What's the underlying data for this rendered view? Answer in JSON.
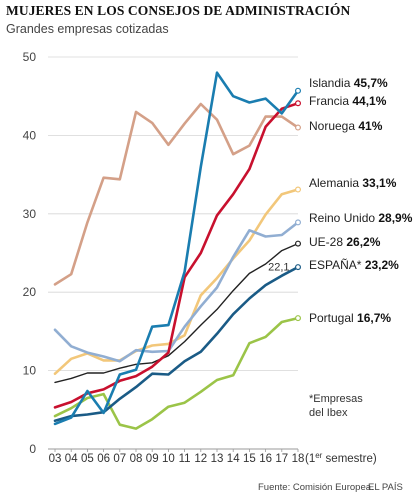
{
  "chart_data": {
    "type": "line",
    "title": "MUJERES EN LOS CONSEJOS DE ADMINISTRACIÓN",
    "subtitle": "Grandes empresas cotizadas",
    "x": [
      "03",
      "04",
      "05",
      "06",
      "07",
      "08",
      "09",
      "10",
      "11",
      "12",
      "13",
      "14",
      "15",
      "16",
      "17",
      "18"
    ],
    "x_suffix": " (1",
    "x_suffix_sup": "er",
    "x_suffix_end": " semestre)",
    "ylim": [
      0,
      50
    ],
    "yticks": [
      0,
      10,
      20,
      30,
      40,
      50
    ],
    "grid": "horizontal",
    "series": [
      {
        "name": "Islandia",
        "label_value": "45,7%",
        "color": "#1a7db0",
        "values": [
          3.2,
          4.0,
          7.4,
          4.6,
          9.5,
          10.1,
          15.6,
          15.8,
          22.6,
          36.0,
          48.0,
          45.0,
          44.2,
          44.7,
          42.8,
          45.7
        ]
      },
      {
        "name": "Francia",
        "label_value": "44,1%",
        "color": "#c8102e",
        "values": [
          5.3,
          6.0,
          7.1,
          7.6,
          8.7,
          9.3,
          10.5,
          12.3,
          21.9,
          25.0,
          29.8,
          32.5,
          35.7,
          41.1,
          43.4,
          44.1
        ]
      },
      {
        "name": "Noruega",
        "label_value": "41%",
        "color": "#d4a088",
        "values": [
          21.0,
          22.3,
          28.9,
          34.6,
          34.4,
          43.0,
          41.6,
          38.8,
          41.5,
          44.0,
          42.0,
          37.6,
          38.7,
          42.4,
          42.4,
          41.0
        ]
      },
      {
        "name": "Alemania",
        "label_value": "33,1%",
        "color": "#f2c77a",
        "values": [
          9.6,
          11.5,
          12.2,
          11.3,
          11.3,
          12.5,
          13.2,
          13.4,
          14.5,
          19.6,
          21.8,
          24.3,
          26.6,
          29.9,
          32.5,
          33.1
        ]
      },
      {
        "name": "Reino Unido",
        "label_value": "28,9%",
        "color": "#91aed2",
        "values": [
          15.2,
          13.1,
          12.3,
          11.8,
          11.2,
          12.6,
          12.4,
          12.5,
          15.6,
          18.2,
          20.6,
          24.5,
          27.9,
          27.1,
          27.3,
          28.9
        ]
      },
      {
        "name": "UE-28",
        "label_value": "26,2%",
        "color": "#222222",
        "values": [
          8.5,
          9.0,
          9.7,
          9.7,
          10.3,
          10.8,
          11.0,
          11.9,
          13.7,
          15.8,
          17.8,
          20.2,
          22.4,
          23.6,
          25.3,
          26.2
        ]
      },
      {
        "name": "ESPAÑA*",
        "label_value": "23,2%",
        "color": "#1a5b86",
        "values": [
          3.6,
          4.2,
          4.4,
          4.7,
          6.4,
          7.9,
          9.6,
          9.5,
          11.2,
          12.4,
          14.7,
          17.2,
          19.2,
          20.9,
          22.1,
          23.2
        ]
      },
      {
        "name": "Portugal",
        "label_value": "16,7%",
        "color": "#9bc448",
        "values": [
          4.2,
          5.2,
          6.5,
          7.0,
          3.1,
          2.6,
          3.8,
          5.4,
          5.9,
          7.3,
          8.8,
          9.4,
          13.5,
          14.3,
          16.2,
          16.7
        ]
      }
    ],
    "annotations": {
      "spain_point_label": "22,1",
      "footnote_line1": "*Empresas",
      "footnote_line2": "del Ibex"
    },
    "source": "Fuente: Comisión Europea.",
    "brand": "EL PAÍS"
  }
}
